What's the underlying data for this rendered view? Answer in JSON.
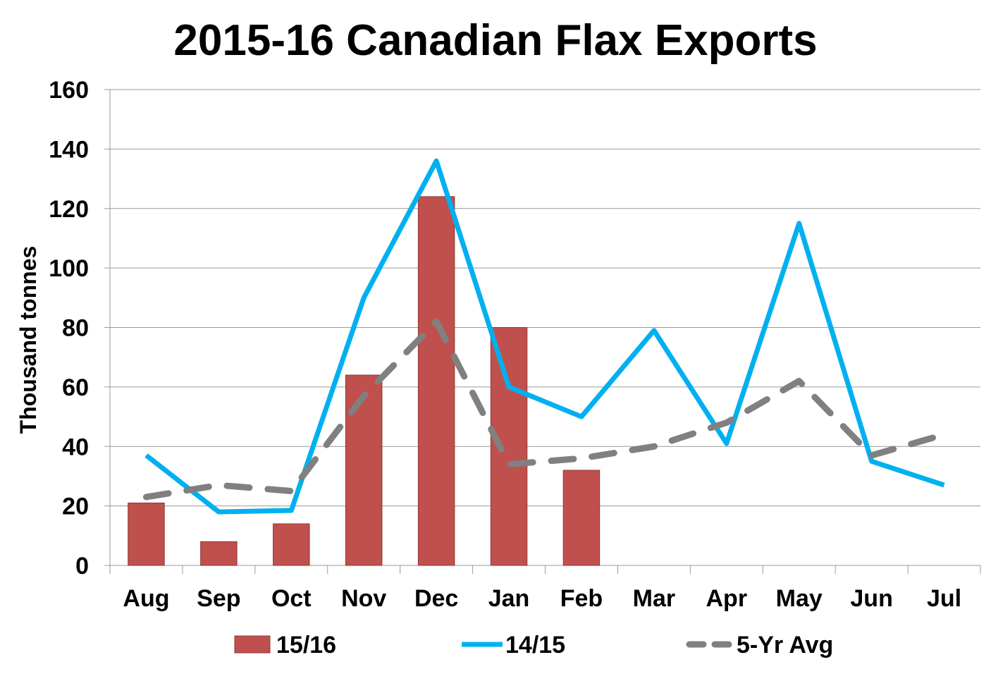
{
  "chart_data": {
    "type": "bar",
    "title": "2015-16 Canadian Flax Exports",
    "xlabel": "",
    "ylabel": "Thousand tonnes",
    "ylim": [
      0,
      160
    ],
    "yticks": [
      0,
      20,
      40,
      60,
      80,
      100,
      120,
      140,
      160
    ],
    "grid": true,
    "legend_position": "bottom",
    "categories": [
      "Aug",
      "Sep",
      "Oct",
      "Nov",
      "Dec",
      "Jan",
      "Feb",
      "Mar",
      "Apr",
      "May",
      "Jun",
      "Jul"
    ],
    "series": [
      {
        "name": "15/16",
        "kind": "bar",
        "color": "#C0504D",
        "values": [
          21,
          8,
          14,
          64,
          124,
          80,
          32,
          null,
          null,
          null,
          null,
          null
        ]
      },
      {
        "name": "14/15",
        "kind": "line",
        "color": "#00B0F0",
        "values": [
          37,
          18,
          18.5,
          90,
          136,
          60,
          50,
          79,
          41,
          115,
          35,
          27
        ]
      },
      {
        "name": "5-Yr Avg",
        "kind": "dashed-line",
        "color": "#808080",
        "values": [
          23,
          27,
          25,
          57,
          82,
          34,
          36,
          40,
          48,
          62,
          37,
          44
        ]
      }
    ]
  }
}
